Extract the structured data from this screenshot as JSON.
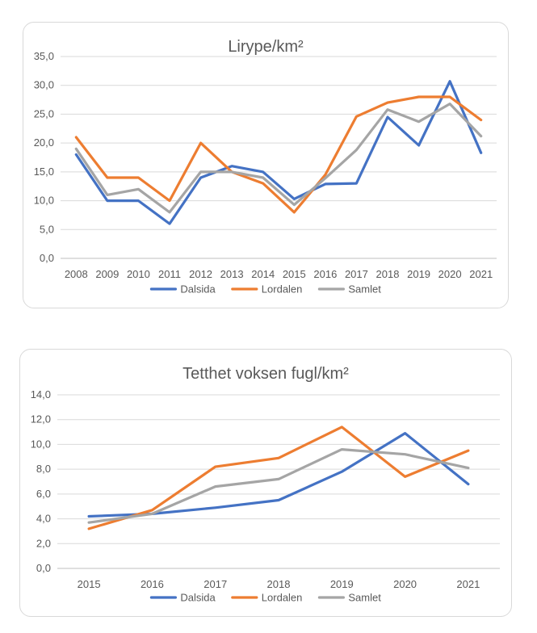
{
  "chart_data": [
    {
      "type": "line",
      "title": "Lirype/km²",
      "x": [
        "2008",
        "2009",
        "2010",
        "2011",
        "2012",
        "2013",
        "2014",
        "2015",
        "2016",
        "2017",
        "2018",
        "2019",
        "2020",
        "2021"
      ],
      "ylim": [
        0,
        35
      ],
      "yticks": [
        "0,0",
        "5,0",
        "10,0",
        "15,0",
        "20,0",
        "25,0",
        "30,0",
        "35,0"
      ],
      "ytick_values": [
        0,
        5,
        10,
        15,
        20,
        25,
        30,
        35
      ],
      "grid": true,
      "legend": "bottom",
      "series": [
        {
          "name": "Dalsida",
          "color": "#4472c4",
          "values": [
            18.0,
            10.0,
            10.0,
            6.0,
            14.0,
            16.0,
            15.0,
            10.3,
            12.9,
            13.0,
            24.5,
            19.6,
            30.7,
            18.3
          ]
        },
        {
          "name": "Lordalen",
          "color": "#ed7d31",
          "values": [
            21.0,
            14.0,
            14.0,
            10.0,
            20.0,
            15.0,
            13.0,
            8.0,
            14.5,
            24.6,
            27.0,
            28.0,
            28.0,
            24.0
          ]
        },
        {
          "name": "Samlet",
          "color": "#a5a5a5",
          "values": [
            19.0,
            11.0,
            12.0,
            8.0,
            15.0,
            15.0,
            14.0,
            9.3,
            13.9,
            18.8,
            25.8,
            23.7,
            26.8,
            21.2
          ]
        }
      ]
    },
    {
      "type": "line",
      "title": "Tetthet voksen fugl/km²",
      "x": [
        "2015",
        "2016",
        "2017",
        "2018",
        "2019",
        "2020",
        "2021"
      ],
      "ylim": [
        0,
        14
      ],
      "yticks": [
        "0,0",
        "2,0",
        "4,0",
        "6,0",
        "8,0",
        "10,0",
        "12,0",
        "14,0"
      ],
      "ytick_values": [
        0,
        2,
        4,
        6,
        8,
        10,
        12,
        14
      ],
      "grid": true,
      "legend": "bottom",
      "series": [
        {
          "name": "Dalsida",
          "color": "#4472c4",
          "values": [
            4.2,
            4.4,
            4.9,
            5.5,
            7.8,
            10.9,
            6.8
          ]
        },
        {
          "name": "Lordalen",
          "color": "#ed7d31",
          "values": [
            3.2,
            4.7,
            8.2,
            8.9,
            11.4,
            7.4,
            9.5
          ]
        },
        {
          "name": "Samlet",
          "color": "#a5a5a5",
          "values": [
            3.7,
            4.4,
            6.6,
            7.2,
            9.6,
            9.2,
            8.1
          ]
        }
      ]
    }
  ]
}
